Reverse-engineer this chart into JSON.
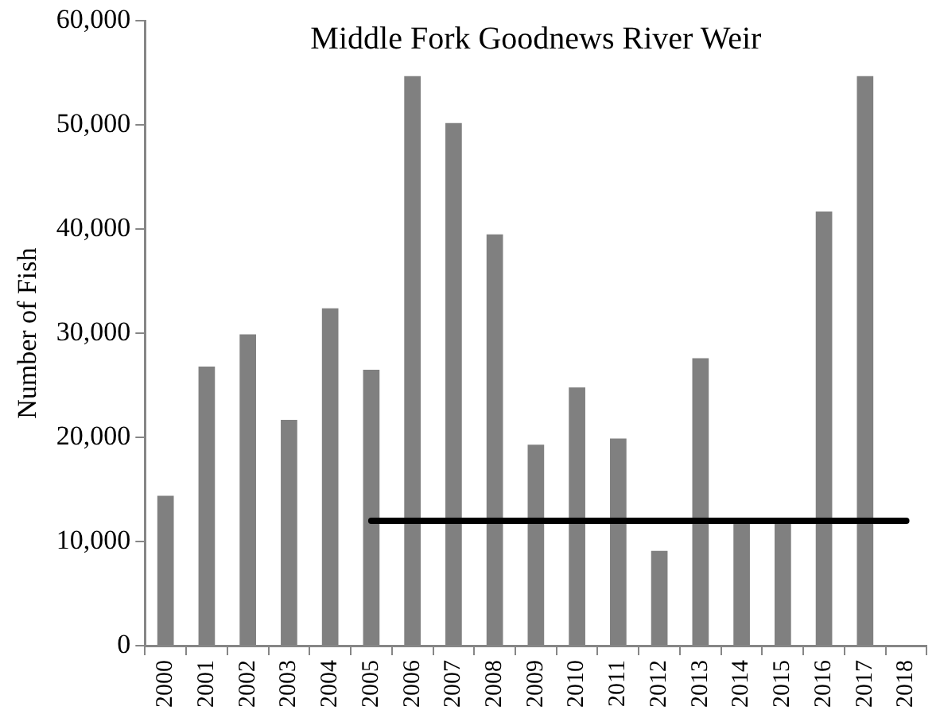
{
  "chart_data": {
    "type": "bar",
    "title": "Middle Fork Goodnews River Weir",
    "ylabel": "Number of Fish",
    "categories": [
      "2000",
      "2001",
      "2002",
      "2003",
      "2004",
      "2005",
      "2006",
      "2007",
      "2008",
      "2009",
      "2010",
      "2011",
      "2012",
      "2013",
      "2014",
      "2015",
      "2016",
      "2017",
      "2018"
    ],
    "series": [
      {
        "color": "#808080",
        "values": [
          14400,
          26800,
          29900,
          21700,
          32400,
          26500,
          54700,
          50200,
          39500,
          19300,
          24800,
          19900,
          9100,
          27600,
          12000,
          12000,
          41700,
          54700,
          null
        ]
      },
      {
        "type": "line",
        "color": "#000000",
        "values": [
          null,
          null,
          null,
          null,
          null,
          12000,
          12000,
          12000,
          12000,
          12000,
          12000,
          12000,
          12000,
          12000,
          12000,
          12000,
          12000,
          12000,
          12000
        ]
      }
    ],
    "ylim": [
      0,
      60000
    ],
    "yticks": [
      {
        "value": 0,
        "label": "0"
      },
      {
        "value": 10000,
        "label": "10,000"
      },
      {
        "value": 20000,
        "label": "20,000"
      },
      {
        "value": 30000,
        "label": "30,000"
      },
      {
        "value": 40000,
        "label": "40,000"
      },
      {
        "value": 50000,
        "label": "50,000"
      },
      {
        "value": 60000,
        "label": "60,000"
      }
    ],
    "grid": false,
    "legend": false,
    "marker": "none",
    "line_style": "solid"
  }
}
